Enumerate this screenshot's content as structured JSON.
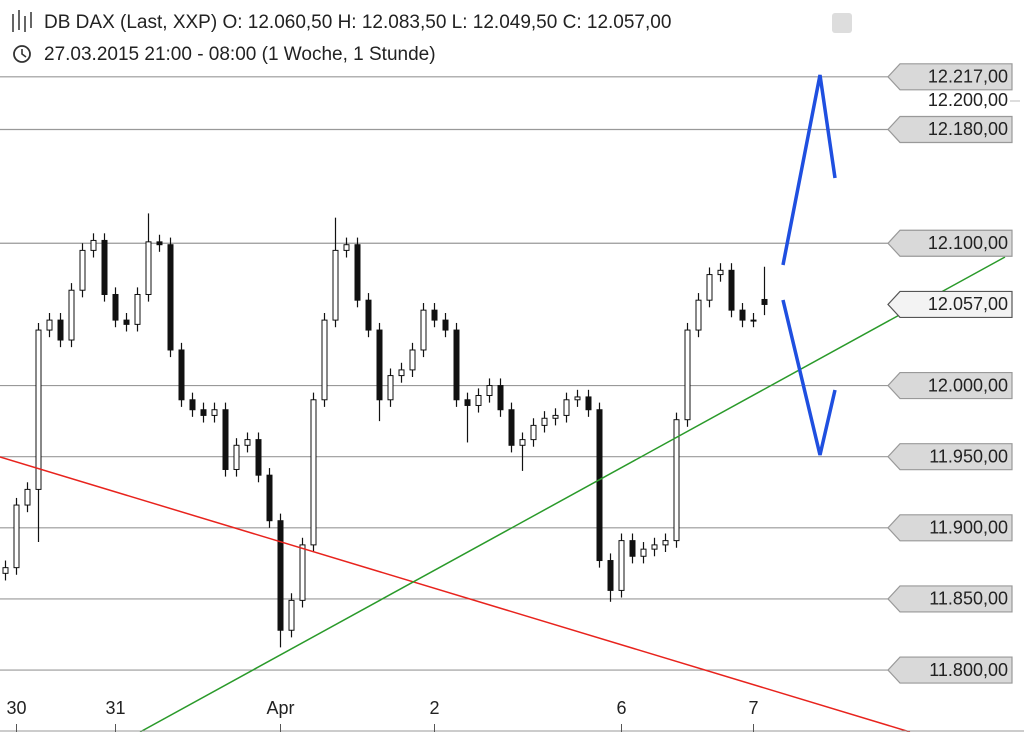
{
  "chart_data": {
    "type": "candlestick",
    "title": "DB DAX (Last, XXP)   O: 12.060,50   H: 12.083,50   L: 12.049,50   C: 12.057,00",
    "subtitle": "27.03.2015 21:00 - 08:00 (1 Woche, 1 Stunde)",
    "xlim": [
      -0.5,
      91.5
    ],
    "ylim": [
      11786,
      12271
    ],
    "xticks": [
      {
        "value": 1,
        "label": "30"
      },
      {
        "value": 10,
        "label": "31"
      },
      {
        "value": 25,
        "label": "Apr"
      },
      {
        "value": 39,
        "label": "2"
      },
      {
        "value": 56,
        "label": "6"
      },
      {
        "value": 68,
        "label": "7"
      }
    ],
    "yticks": [
      {
        "value": 12200,
        "label": "12.200,00"
      }
    ],
    "levels": [
      {
        "value": 12217,
        "label": "12.217,00"
      },
      {
        "value": 12180,
        "label": "12.180,00"
      },
      {
        "value": 12100,
        "label": "12.100,00"
      },
      {
        "value": 12000,
        "label": "12.000,00"
      },
      {
        "value": 11950,
        "label": "11.950,00"
      },
      {
        "value": 11900,
        "label": "11.900,00"
      },
      {
        "value": 11850,
        "label": "11.850,00"
      },
      {
        "value": 11800,
        "label": "11.800,00"
      }
    ],
    "last_price": {
      "value": 12057,
      "label": "12.057,00"
    },
    "open": [
      11868,
      11872,
      11916,
      11927,
      12039,
      12046,
      12032,
      12067,
      12095,
      12102,
      12064,
      12046,
      12043,
      12064,
      12101,
      12099,
      12025,
      11990,
      11983,
      11979,
      11983,
      11941,
      11958,
      11962,
      11937,
      11905,
      11828,
      11849,
      11888,
      11990,
      12046,
      12095,
      12099,
      12060,
      12039,
      11990,
      12007,
      12011,
      12025,
      12053,
      12046,
      12039,
      11990,
      11986,
      11993,
      12000,
      11983,
      11958,
      11962,
      11972,
      11977,
      11979,
      11990,
      11992,
      11983,
      11877,
      11856,
      11891,
      11880,
      11885,
      11888,
      11891,
      11976,
      12039,
      12060,
      12078,
      12081,
      12053,
      12046,
      12060.5
    ],
    "high": [
      11877,
      11921,
      11932,
      12044,
      12051,
      12051,
      12072,
      12100,
      12107,
      12107,
      12069,
      12051,
      12069,
      12121,
      12106,
      12104,
      12030,
      11995,
      11988,
      11988,
      11988,
      11963,
      11967,
      11967,
      11942,
      11910,
      11854,
      11893,
      11995,
      12051,
      12118,
      12104,
      12104,
      12065,
      12044,
      12012,
      12016,
      12030,
      12058,
      12058,
      12051,
      12044,
      11995,
      11998,
      12005,
      12005,
      11988,
      11967,
      11977,
      11982,
      11984,
      11995,
      11997,
      11997,
      11988,
      11882,
      11896,
      11896,
      11890,
      11893,
      11896,
      11981,
      12044,
      12065,
      12083,
      12086,
      12086,
      12058,
      12051,
      12083.5
    ],
    "low": [
      11863,
      11867,
      11911,
      11890,
      12034,
      12027,
      12027,
      12062,
      12090,
      12059,
      12041,
      12038,
      12038,
      12059,
      12094,
      12020,
      11985,
      11978,
      11974,
      11974,
      11936,
      11936,
      11953,
      11932,
      11900,
      11816,
      11823,
      11844,
      11883,
      11985,
      12041,
      12090,
      12055,
      12034,
      11975,
      11985,
      12002,
      12006,
      12020,
      12041,
      12034,
      11985,
      11960,
      11981,
      11988,
      11978,
      11953,
      11940,
      11957,
      11967,
      11972,
      11974,
      11985,
      11978,
      11872,
      11848,
      11851,
      11875,
      11875,
      11880,
      11883,
      11886,
      11971,
      12034,
      12055,
      12073,
      12048,
      12041,
      12041,
      12049.5
    ],
    "close": [
      11872,
      11916,
      11927,
      12039,
      12046,
      12032,
      12067,
      12095,
      12102,
      12064,
      12046,
      12043,
      12064,
      12101,
      12099,
      12025,
      11990,
      11983,
      11979,
      11983,
      11941,
      11958,
      11962,
      11937,
      11905,
      11828,
      11849,
      11888,
      11990,
      12046,
      12095,
      12099,
      12060,
      12039,
      11990,
      12007,
      12011,
      12025,
      12053,
      12046,
      12039,
      11990,
      11986,
      11993,
      12000,
      11983,
      11958,
      11962,
      11972,
      11977,
      11979,
      11990,
      11992,
      11983,
      11877,
      11856,
      11891,
      11880,
      11885,
      11888,
      11891,
      11976,
      12039,
      12060,
      12078,
      12081,
      12053,
      12046,
      12046,
      12057
    ]
  }
}
